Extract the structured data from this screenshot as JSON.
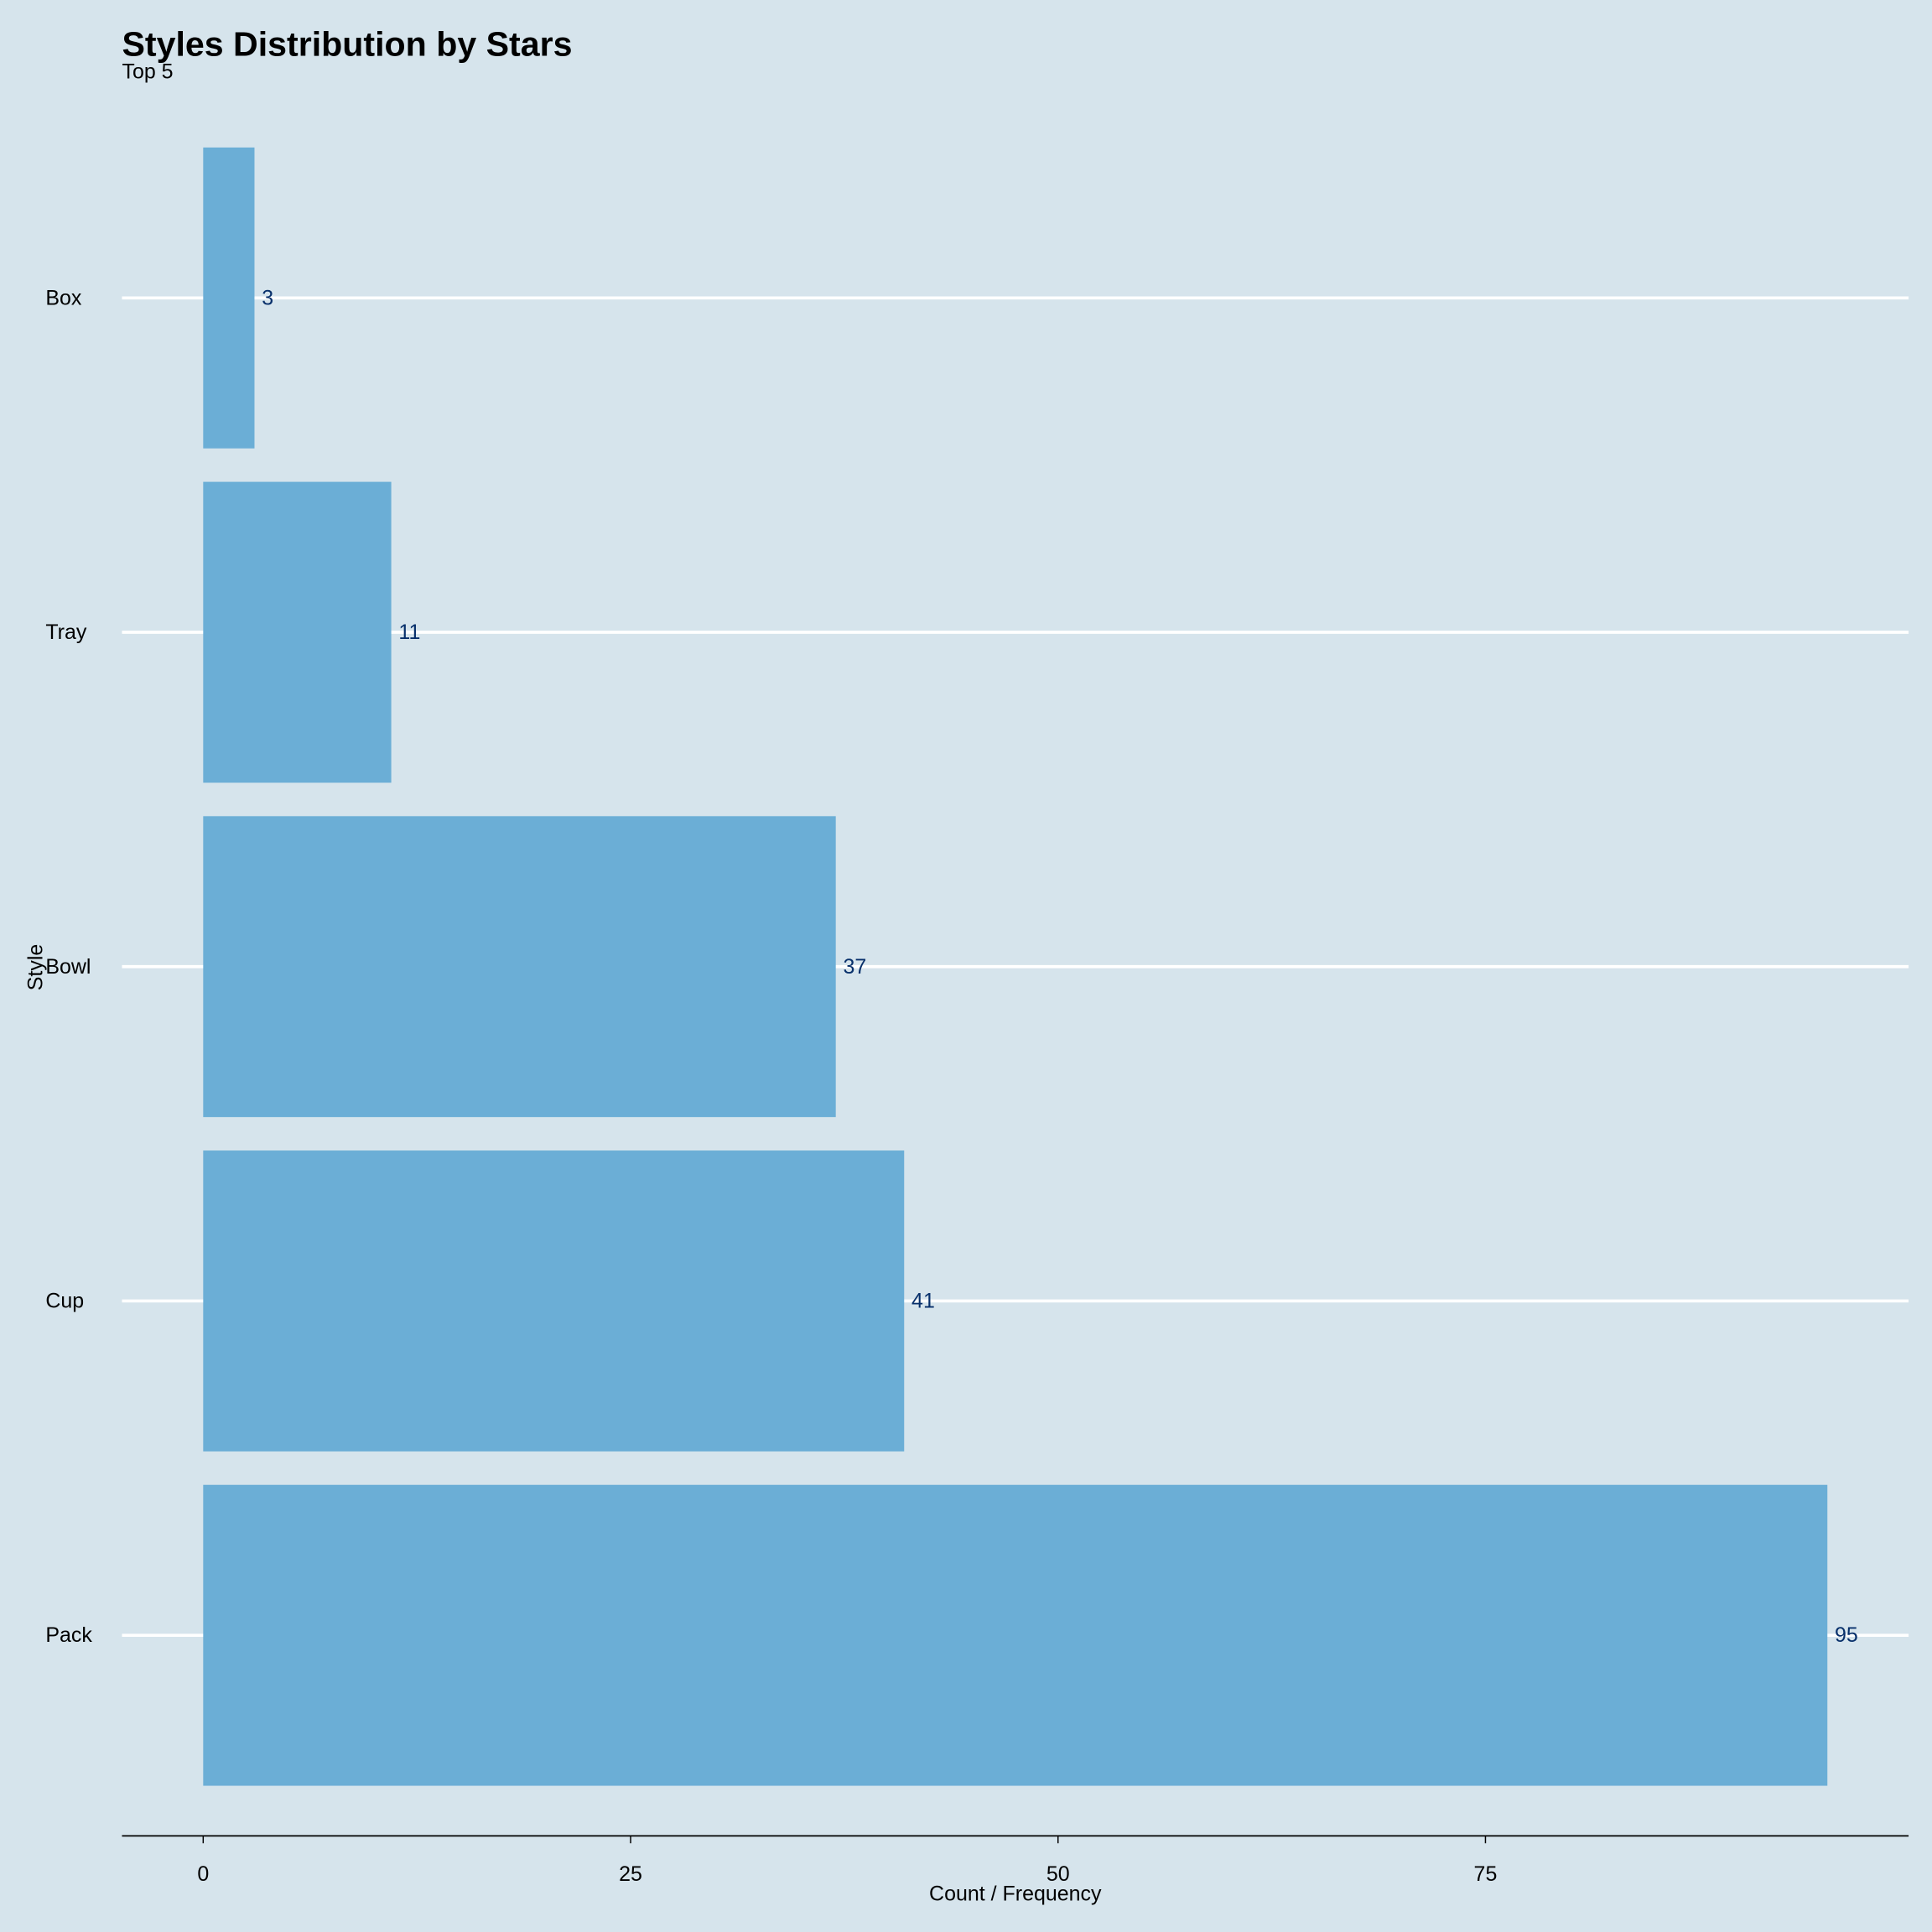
{
  "chart_data": {
    "type": "bar",
    "orientation": "horizontal",
    "title": "Styles Distribution by Stars",
    "subtitle": "Top 5",
    "x_label": "Count / Frequency",
    "y_label": "Style",
    "categories": [
      "Box",
      "Tray",
      "Bowl",
      "Cup",
      "Pack"
    ],
    "values": [
      3,
      11,
      37,
      41,
      95
    ],
    "color": "#6baed6",
    "label_color": "#08306b",
    "xlim": [
      -4.75,
      99.75
    ],
    "xticks": [
      0,
      25,
      50,
      75
    ],
    "grid": true
  }
}
